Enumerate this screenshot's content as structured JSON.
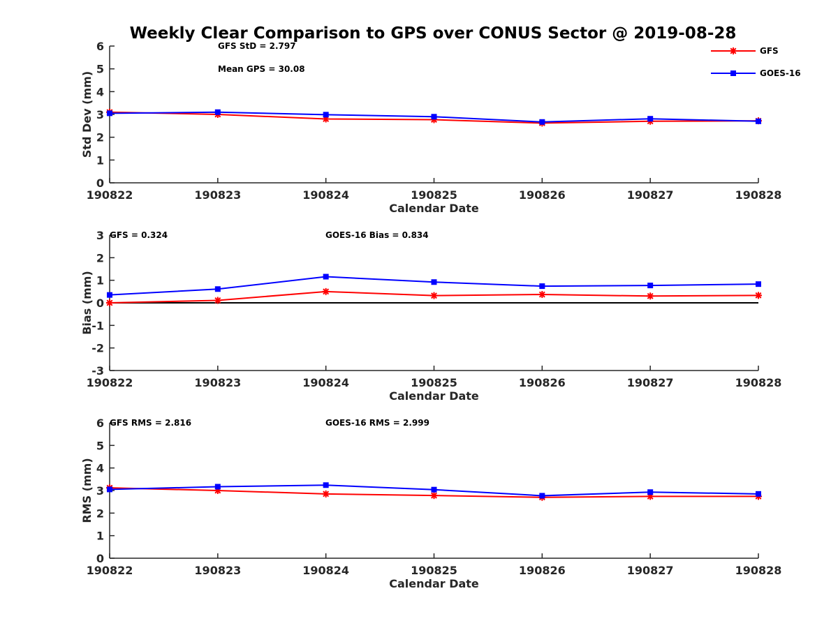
{
  "chart_data": {
    "title": "Weekly Clear Comparison to GPS over CONUS Sector @ 2019-08-28",
    "legend": {
      "placement": "top-right",
      "entries": [
        {
          "name": "GFS",
          "color": "#ff0000",
          "marker": "asterisk"
        },
        {
          "name": "GOES-16",
          "color": "#0000ff",
          "marker": "square"
        }
      ]
    },
    "panels": [
      {
        "type": "line",
        "x": [
          "190822",
          "190823",
          "190824",
          "190825",
          "190826",
          "190827",
          "190828"
        ],
        "xlabel": "Calendar Date",
        "ylabel": "Std Dev (mm)",
        "ylim": [
          0,
          6
        ],
        "yticks": [
          "0",
          "1",
          "2",
          "3",
          "4",
          "5",
          "6"
        ],
        "zero_line": false,
        "series": [
          {
            "name": "GFS",
            "color": "#ff0000",
            "marker": "asterisk",
            "values": [
              3.1,
              3.0,
              2.8,
              2.77,
              2.62,
              2.7,
              2.72
            ]
          },
          {
            "name": "GOES-16",
            "color": "#0000ff",
            "marker": "square",
            "values": [
              3.05,
              3.1,
              2.99,
              2.9,
              2.67,
              2.81,
              2.7
            ]
          }
        ],
        "annotations": [
          "GFS StD = 2.797",
          "Mean GPS = 30.08"
        ]
      },
      {
        "type": "line",
        "x": [
          "190822",
          "190823",
          "190824",
          "190825",
          "190826",
          "190827",
          "190828"
        ],
        "xlabel": "Calendar Date",
        "ylabel": "Bias (mm)",
        "ylim": [
          -3,
          3
        ],
        "yticks": [
          "-3",
          "-2",
          "-1",
          "0",
          "1",
          "2",
          "3"
        ],
        "zero_line": true,
        "series": [
          {
            "name": "GFS",
            "color": "#ff0000",
            "marker": "asterisk",
            "values": [
              0.0,
              0.11,
              0.5,
              0.32,
              0.37,
              0.3,
              0.33
            ]
          },
          {
            "name": "GOES-16",
            "color": "#0000ff",
            "marker": "square",
            "values": [
              0.35,
              0.61,
              1.16,
              0.92,
              0.74,
              0.77,
              0.83
            ]
          }
        ],
        "annotations": [
          "GFS = 0.324",
          "GOES-16 Bias  = 0.834"
        ]
      },
      {
        "type": "line",
        "x": [
          "190822",
          "190823",
          "190824",
          "190825",
          "190826",
          "190827",
          "190828"
        ],
        "xlabel": "Calendar Date",
        "ylabel": "RMS (mm)",
        "ylim": [
          0,
          6
        ],
        "yticks": [
          "0",
          "1",
          "2",
          "3",
          "4",
          "5",
          "6"
        ],
        "zero_line": false,
        "series": [
          {
            "name": "GFS",
            "color": "#ff0000",
            "marker": "asterisk",
            "values": [
              3.12,
              3.0,
              2.85,
              2.78,
              2.7,
              2.74,
              2.74
            ]
          },
          {
            "name": "GOES-16",
            "color": "#0000ff",
            "marker": "square",
            "values": [
              3.05,
              3.17,
              3.24,
              3.04,
              2.77,
              2.93,
              2.85
            ]
          }
        ],
        "annotations": [
          "GFS RMS = 2.816",
          "GOES-16 RMS = 2.999"
        ]
      }
    ]
  }
}
